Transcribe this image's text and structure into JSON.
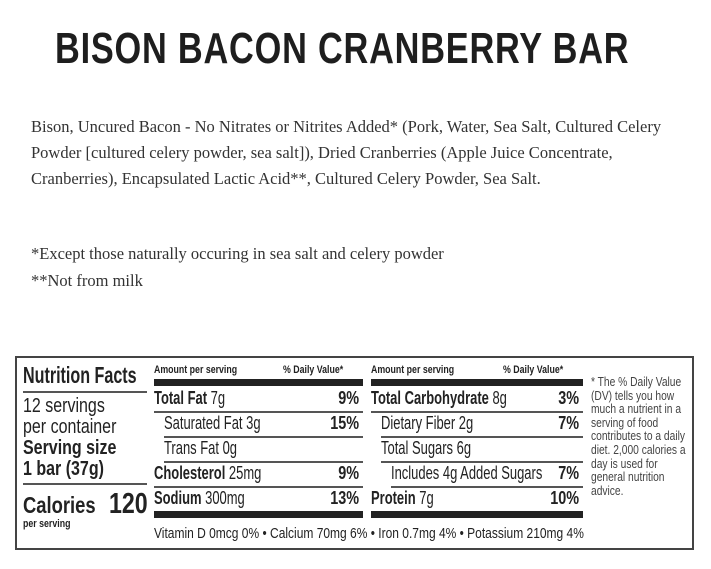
{
  "title": "BISON BACON CRANBERRY BAR",
  "ingredients": "Bison, Uncured Bacon - No Nitrates or Nitrites Added* (Pork, Water, Sea Salt, Cultured Celery Powder [cultured celery powder, sea salt]), Dried Cranberries (Apple Juice Concentrate, Cranberries), Encapsulated Lactic Acid**, Cultured Celery Powder, Sea Salt.",
  "notes": [
    "*Except those naturally occuring in sea salt and celery powder",
    "**Not from milk"
  ],
  "nutrition": {
    "heading": "Nutrition Facts",
    "servings": "12 servings",
    "per_container": "per container",
    "serving_size_label": "Serving size",
    "serving_size": "1 bar (37g)",
    "calories_label": "Calories",
    "calories": "120",
    "per_serving": "per serving",
    "amount_header": "Amount per serving",
    "dv_header": "% Daily Value*",
    "left_rows": [
      {
        "name": "Total Fat",
        "amount": "7g",
        "dv": "9%"
      },
      {
        "name": "Saturated Fat",
        "amount": "3g",
        "dv": "15%"
      },
      {
        "name": "Trans Fat",
        "amount": "0g",
        "dv": ""
      },
      {
        "name": "Cholesterol",
        "amount": "25mg",
        "dv": "9%"
      },
      {
        "name": "Sodium",
        "amount": "300mg",
        "dv": "13%"
      }
    ],
    "right_rows": [
      {
        "name": "Total Carbohydrate",
        "amount": "8g",
        "dv": "3%"
      },
      {
        "name": "Dietary Fiber",
        "amount": "2g",
        "dv": "7%"
      },
      {
        "name": "Total Sugars",
        "amount": "6g",
        "dv": ""
      },
      {
        "name": "Includes 4g Added Sugars",
        "amount": "",
        "dv": "7%"
      },
      {
        "name": "Protein",
        "amount": "7g",
        "dv": "10%"
      }
    ],
    "vitamins": "Vitamin D  0mcg  0% • Calcium  70mg  6% • Iron  0.7mg  4% • Potassium  210mg  4%",
    "footnote": "* The % Daily Value (DV) tells you how much a nutrient in a serving of food contributes to a daily diet. 2,000 calories a day is used for general nutrition advice."
  }
}
